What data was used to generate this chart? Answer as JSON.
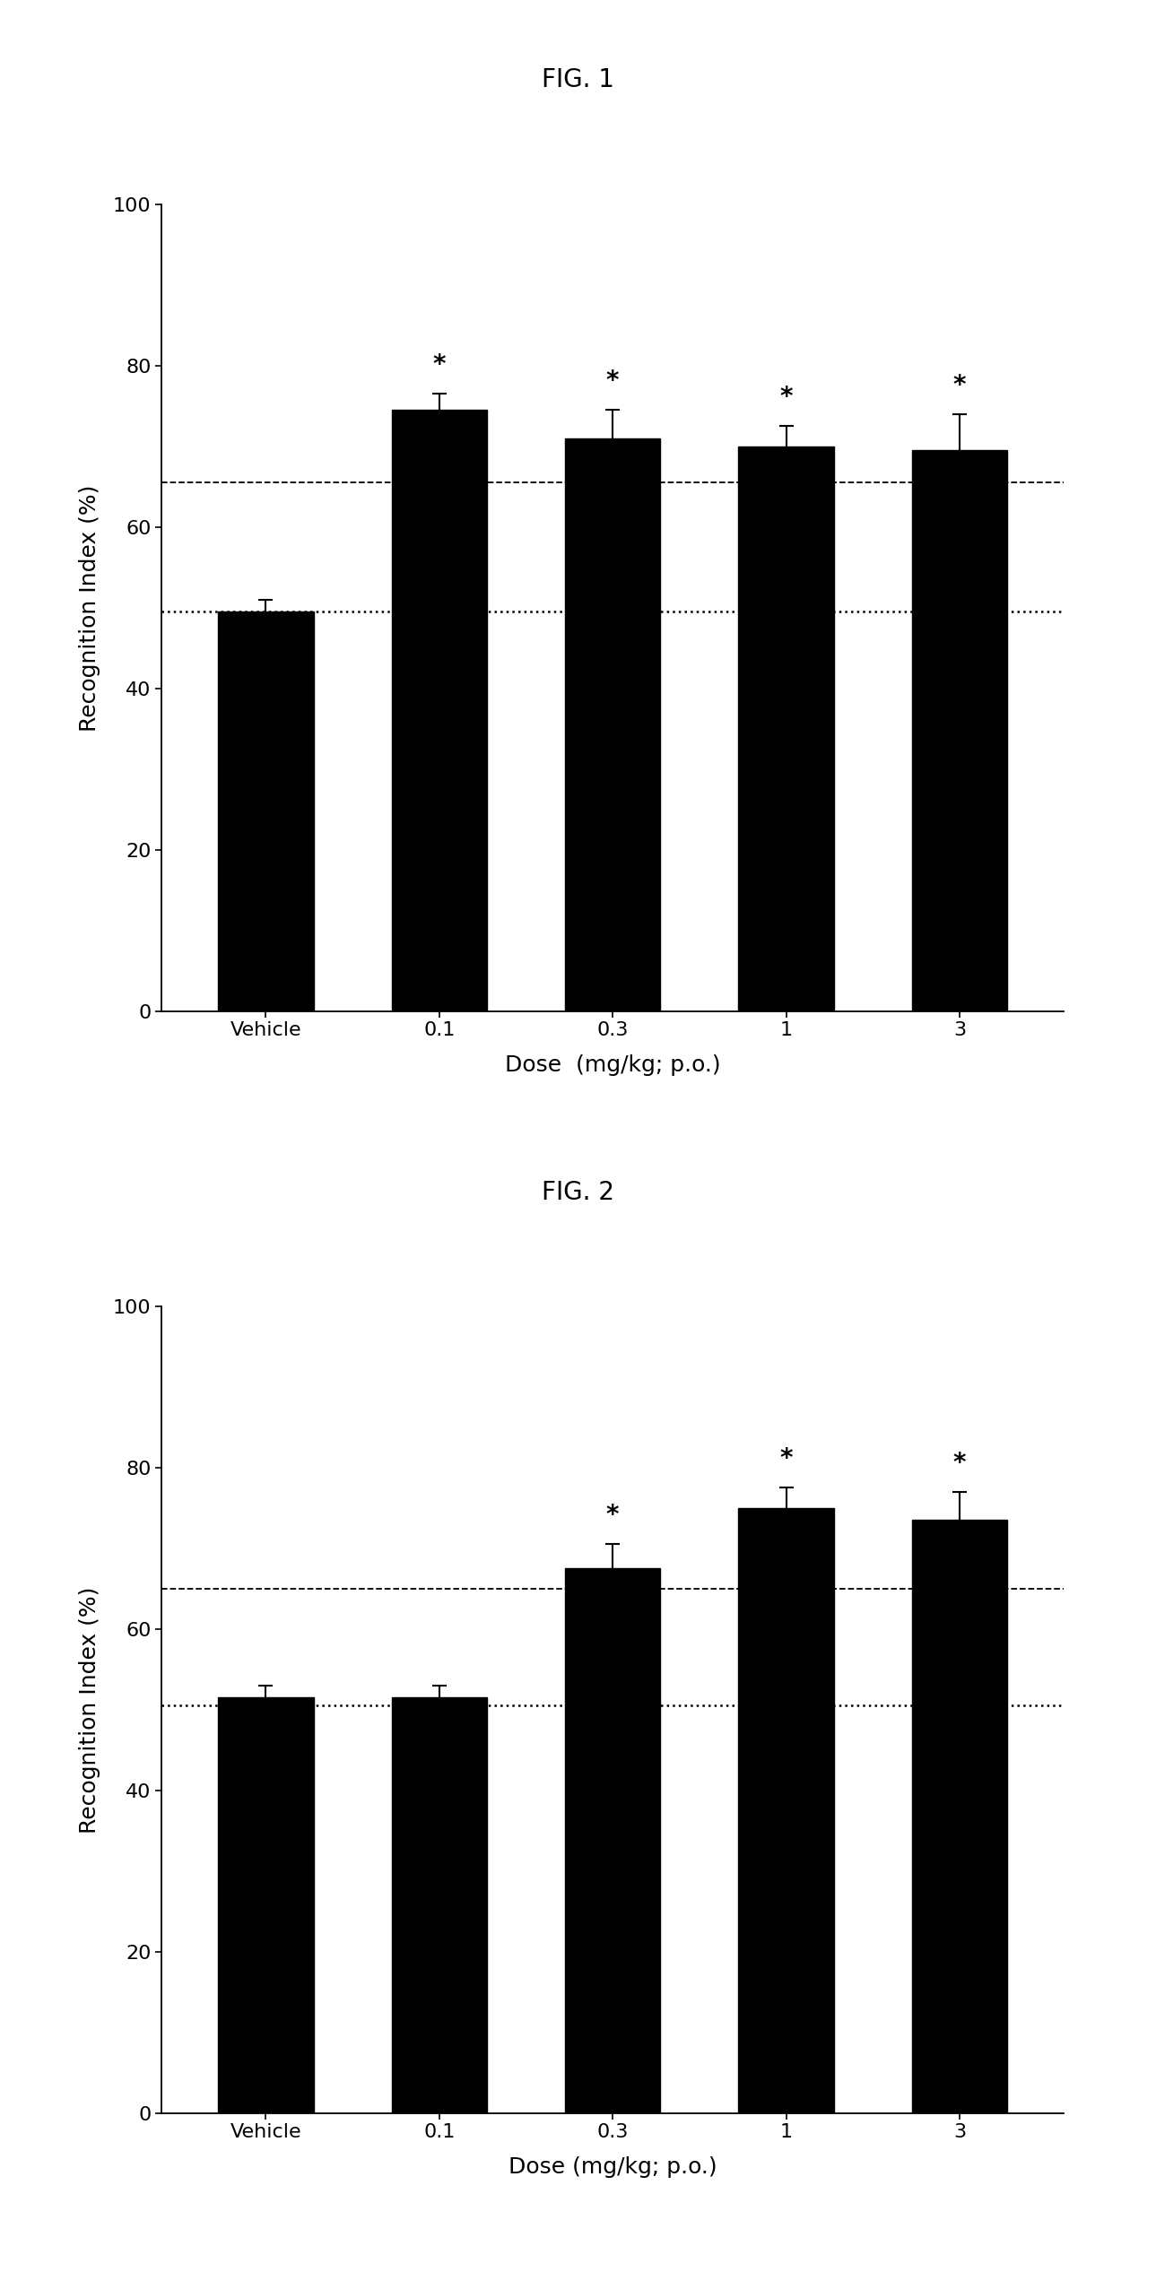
{
  "fig1": {
    "title": "FIG. 1",
    "categories": [
      "Vehicle",
      "0.1",
      "0.3",
      "1",
      "3"
    ],
    "bar_values": [
      49.5,
      74.5,
      71.0,
      70.0,
      69.5
    ],
    "bar_errors": [
      1.5,
      2.0,
      3.5,
      2.5,
      4.5
    ],
    "significant": [
      false,
      true,
      true,
      true,
      true
    ],
    "dashed_line": 65.5,
    "dotted_line": 49.5,
    "ylabel": "Recognition Index (%)",
    "xlabel": "Dose  (mg/kg; p.o.)",
    "ylim": [
      0,
      100
    ],
    "yticks": [
      0,
      20,
      40,
      60,
      80,
      100
    ]
  },
  "fig2": {
    "title": "FIG. 2",
    "categories": [
      "Vehicle",
      "0.1",
      "0.3",
      "1",
      "3"
    ],
    "bar_values": [
      51.5,
      51.5,
      67.5,
      75.0,
      73.5
    ],
    "bar_errors": [
      1.5,
      1.5,
      3.0,
      2.5,
      3.5
    ],
    "significant": [
      false,
      false,
      true,
      true,
      true
    ],
    "dashed_line": 65.0,
    "dotted_line": 50.5,
    "ylabel": "Recognition Index (%)",
    "xlabel": "Dose (mg/kg; p.o.)",
    "ylim": [
      0,
      100
    ],
    "yticks": [
      0,
      20,
      40,
      60,
      80,
      100
    ]
  },
  "bar_color": "#000000",
  "bar_width": 0.55,
  "background_color": "#ffffff",
  "title_fontsize": 20,
  "label_fontsize": 18,
  "tick_fontsize": 16,
  "star_fontsize": 20,
  "figure_width": 12.89,
  "figure_height": 25.34
}
